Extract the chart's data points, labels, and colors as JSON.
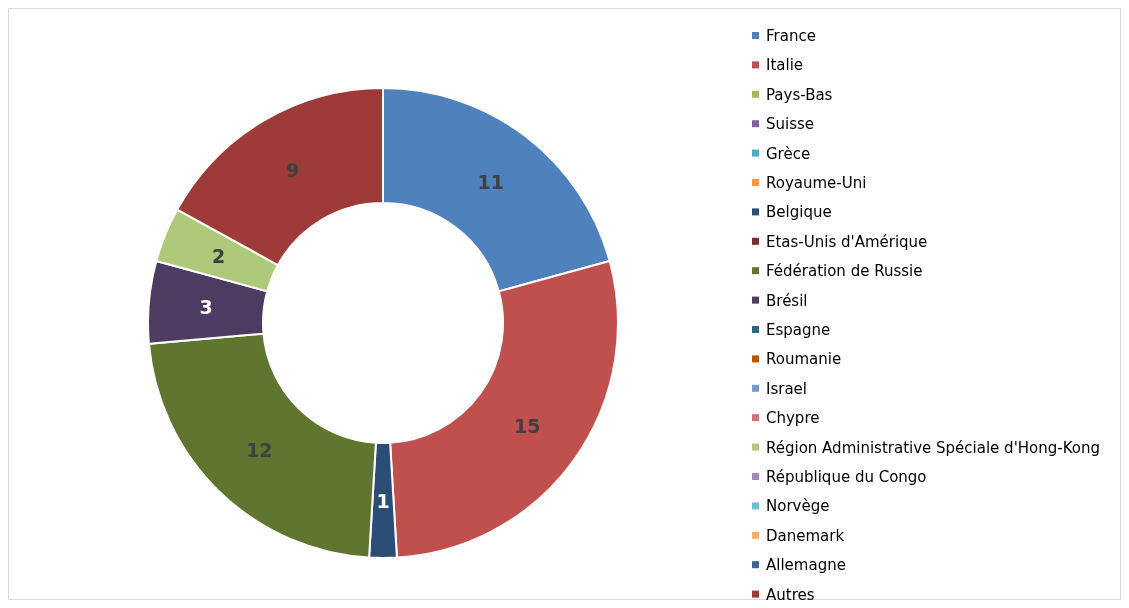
{
  "chart_data": {
    "type": "donut",
    "categories": [
      "France",
      "Italie",
      "Pays-Bas",
      "Suisse",
      "Grèce",
      "Royaume-Uni",
      "Belgique",
      "Etas-Unis d'Amérique",
      "Fédération de Russie",
      "Brésil",
      "Espagne",
      "Roumanie",
      "Israel",
      "Chypre",
      "Région Administrative Spéciale d'Hong-Kong",
      "République du Congo",
      "Norvège",
      "Danemark",
      "Allemagne",
      "Autres"
    ],
    "values": [
      11,
      15,
      0,
      0,
      0,
      0,
      1,
      0,
      12,
      3,
      0,
      0,
      0,
      0,
      2,
      0,
      0,
      0,
      0,
      9
    ],
    "colors": [
      "#4f81bd",
      "#c0504d",
      "#9bbb59",
      "#8064a2",
      "#4bacc6",
      "#f79646",
      "#2c4d75",
      "#772c2a",
      "#5f7530",
      "#4d3b62",
      "#276a7c",
      "#b65708",
      "#729aca",
      "#d0726f",
      "#afc97a",
      "#a08bbb",
      "#6fc0d5",
      "#f9ab6b",
      "#3a6596",
      "#9e3a38"
    ],
    "data_labels": true,
    "legend": "right"
  }
}
